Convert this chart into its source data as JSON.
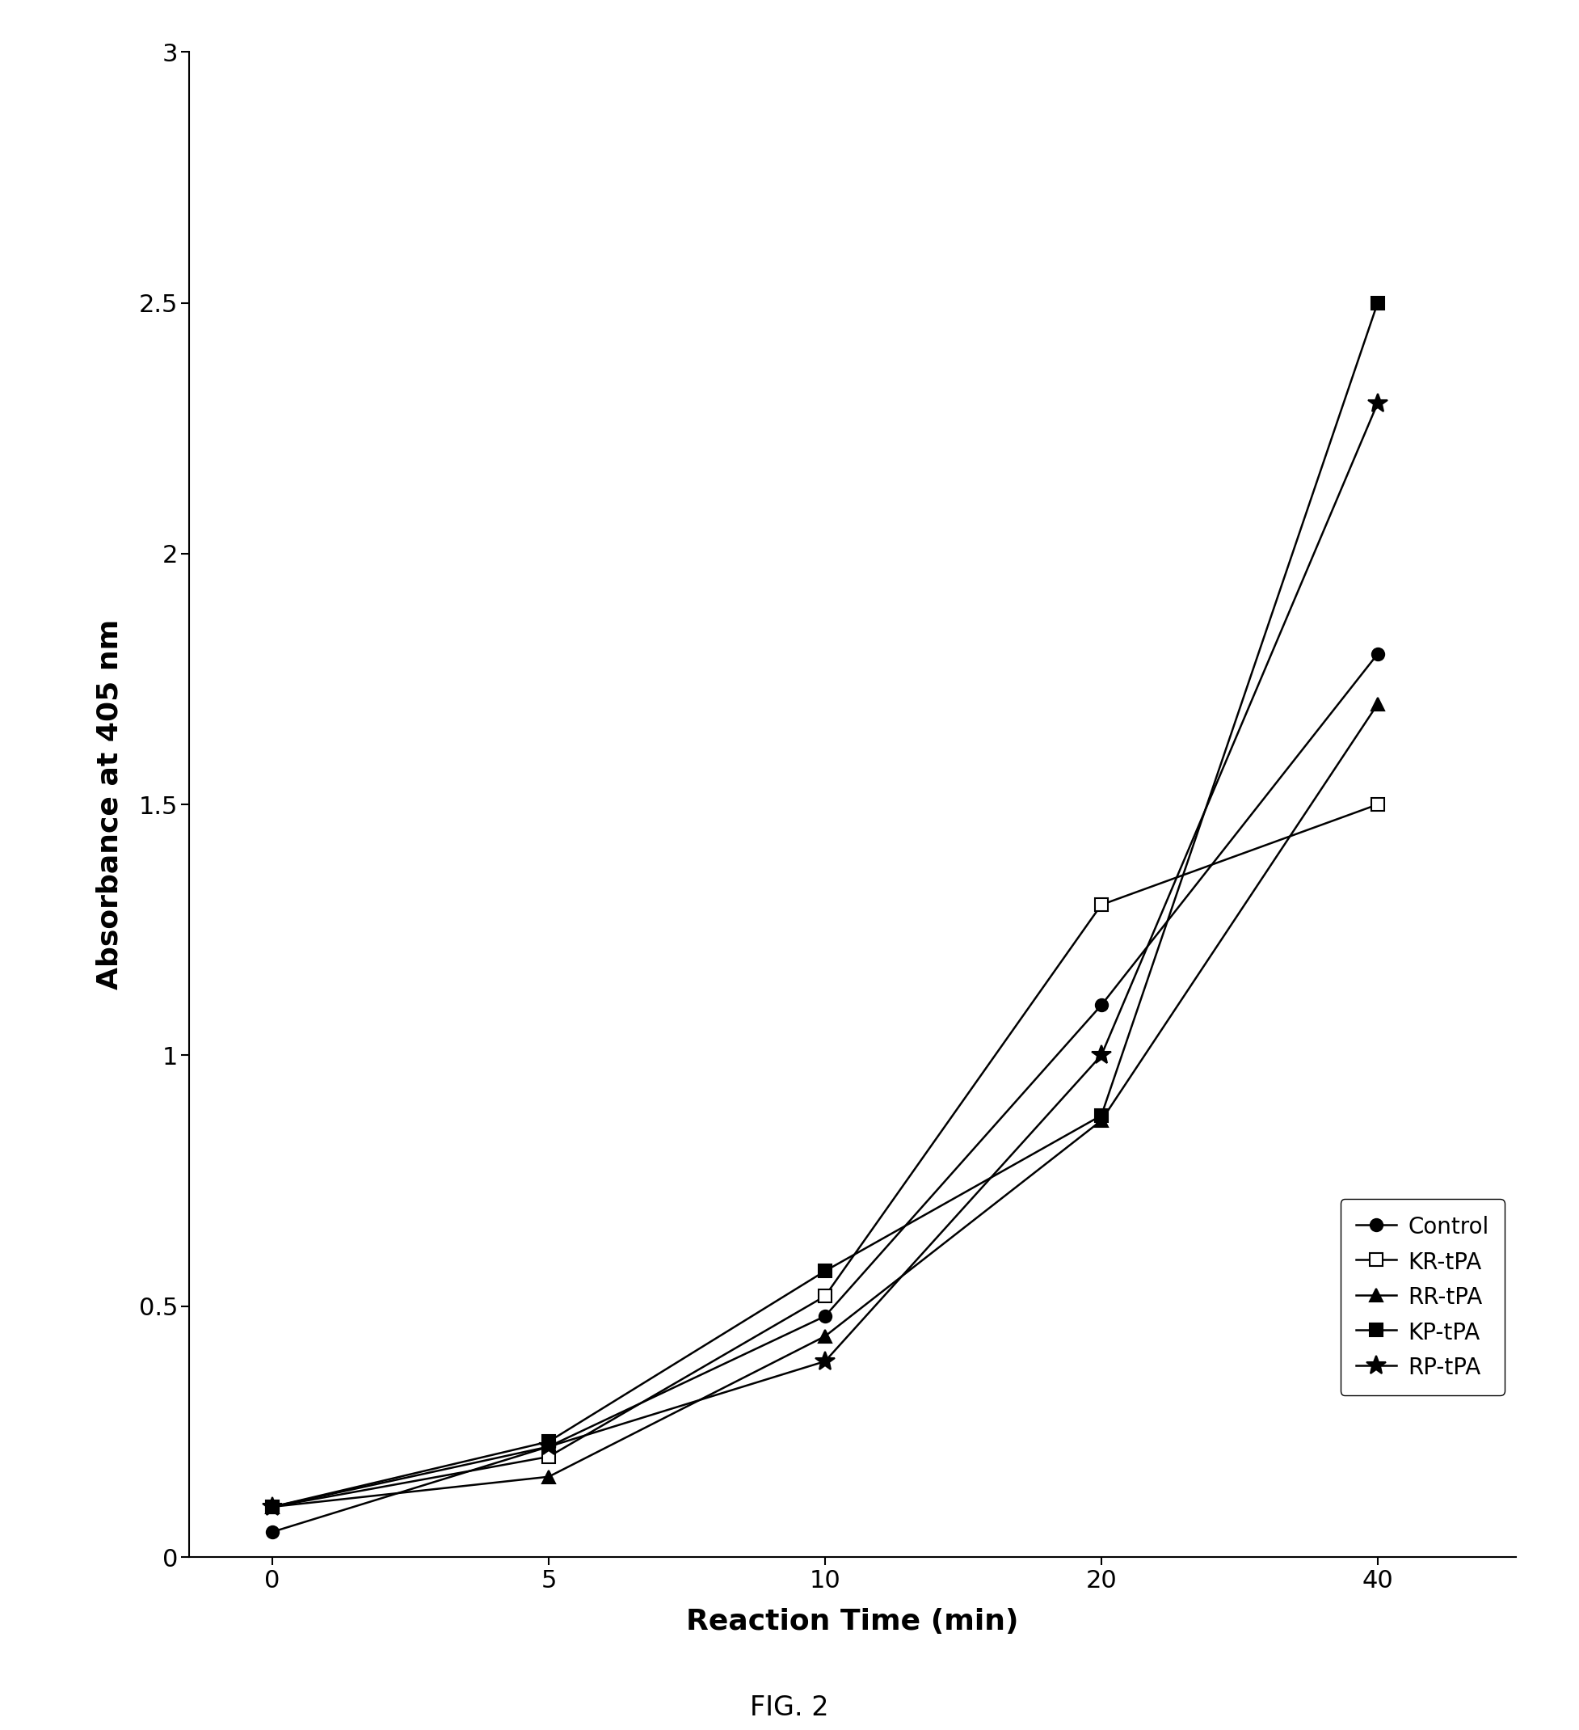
{
  "x": [
    0,
    5,
    10,
    20,
    40
  ],
  "x_positions": [
    0,
    1,
    2,
    3,
    4
  ],
  "x_labels": [
    "0",
    "5",
    "10",
    "20",
    "40"
  ],
  "series": {
    "Control": {
      "y": [
        0.05,
        0.22,
        0.48,
        1.1,
        1.8
      ],
      "marker": "o",
      "markersize": 11,
      "markerfacecolor": "#000000",
      "markeredgecolor": "#000000",
      "filled": true
    },
    "KR-tPA": {
      "y": [
        0.1,
        0.2,
        0.52,
        1.3,
        1.5
      ],
      "marker": "s",
      "markersize": 11,
      "markerfacecolor": "#ffffff",
      "markeredgecolor": "#000000",
      "filled": false
    },
    "RR-tPA": {
      "y": [
        0.1,
        0.16,
        0.44,
        0.87,
        1.7
      ],
      "marker": "^",
      "markersize": 11,
      "markerfacecolor": "#000000",
      "markeredgecolor": "#000000",
      "filled": true
    },
    "KP-tPA": {
      "y": [
        0.1,
        0.23,
        0.57,
        0.88,
        2.5
      ],
      "marker": "s",
      "markersize": 11,
      "markerfacecolor": "#000000",
      "markeredgecolor": "#000000",
      "filled": true
    },
    "RP-tPA": {
      "y": [
        0.1,
        0.22,
        0.39,
        1.0,
        2.3
      ],
      "marker": "*",
      "markersize": 18,
      "markerfacecolor": "#000000",
      "markeredgecolor": "#000000",
      "filled": true
    }
  },
  "xlabel": "Reaction Time (min)",
  "ylabel": "Absorbance at 405 nm",
  "ylim": [
    0,
    3.0
  ],
  "yticks": [
    0,
    0.5,
    1.0,
    1.5,
    2.0,
    2.5,
    3.0
  ],
  "xlim": [
    -0.3,
    4.5
  ],
  "caption": "FIG. 2",
  "legend_order": [
    "Control",
    "KR-tPA",
    "RR-tPA",
    "KP-tPA",
    "RP-tPA"
  ],
  "linewidth": 1.8,
  "linecolor": "#000000",
  "markeredgewidth": 1.5,
  "tick_fontsize": 22,
  "label_fontsize": 26,
  "legend_fontsize": 20,
  "caption_fontsize": 24
}
